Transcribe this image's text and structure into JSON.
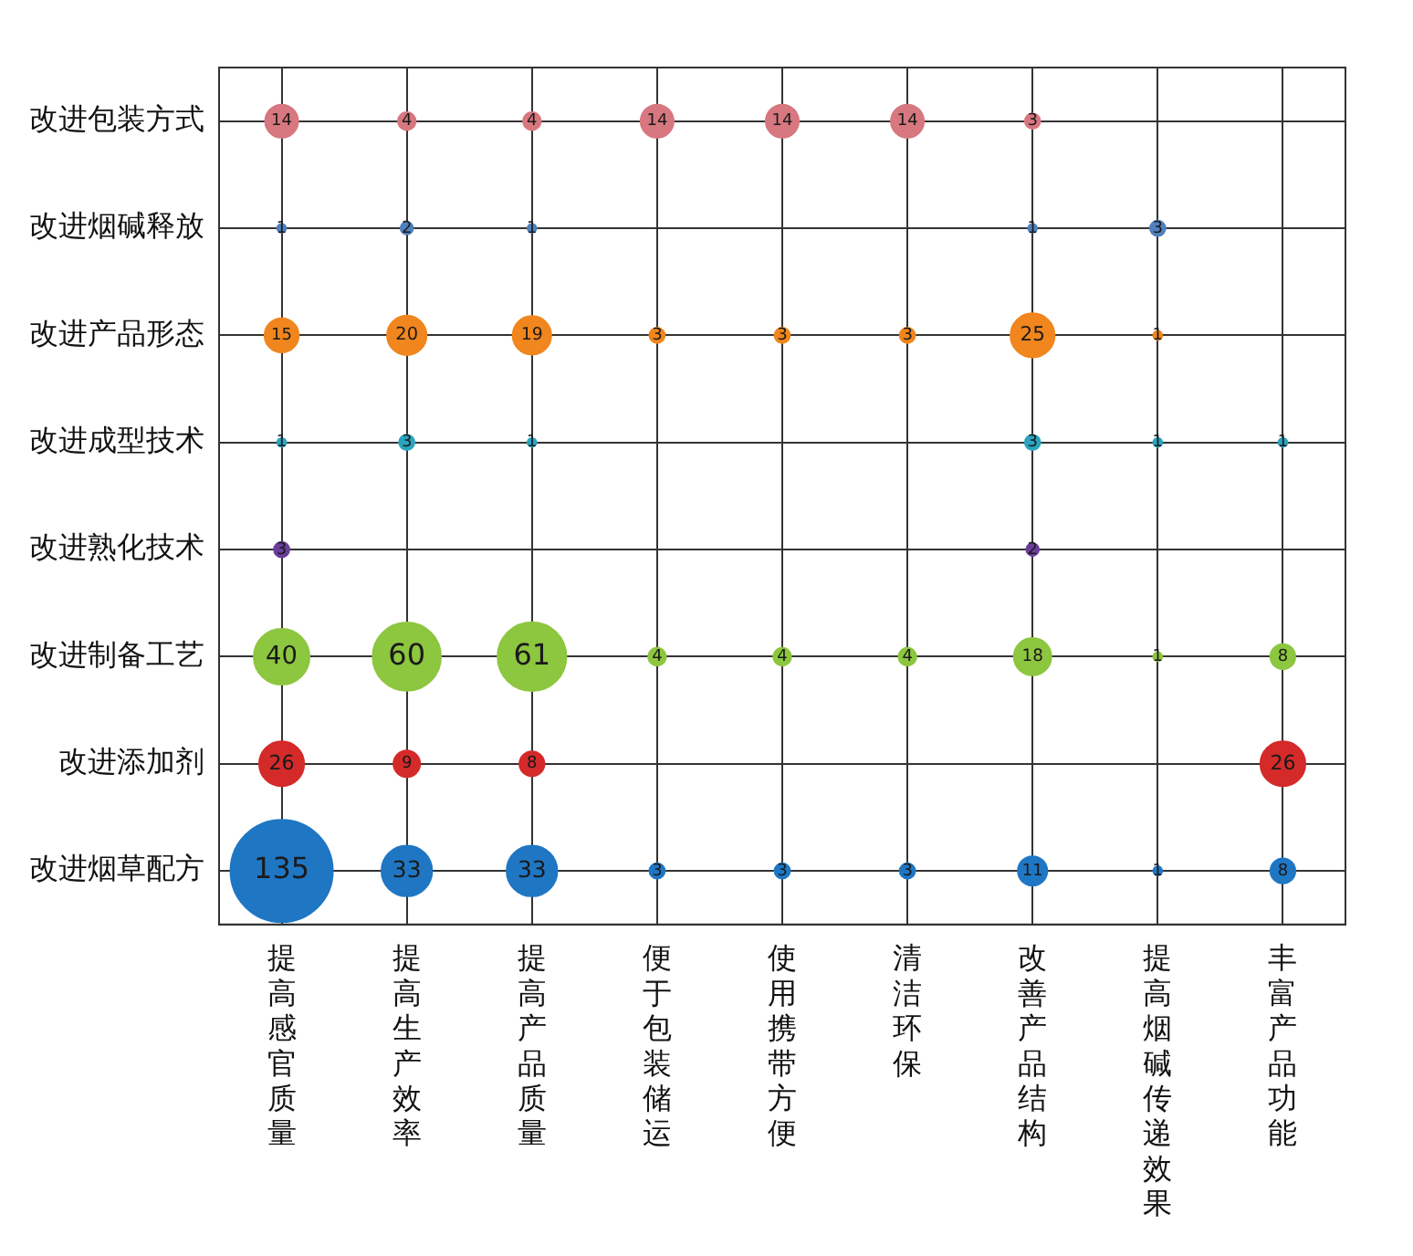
{
  "chart_data": {
    "type": "heatmap",
    "categories": [
      "提高感官质量",
      "提高生产效率",
      "提高产品质量",
      "便于包装储运",
      "使用携带方便",
      "清洁环保",
      "改善产品结构",
      "提高烟碱传递效果",
      "丰富产品功能"
    ],
    "y_categories": [
      "改进包装方式",
      "改进烟碱释放",
      "改进产品形态",
      "改进成型技术",
      "改进熟化技术",
      "改进制备工艺",
      "改进添加剂",
      "改进烟草配方"
    ],
    "cells": [
      [
        14,
        4,
        4,
        14,
        14,
        14,
        3,
        null,
        null
      ],
      [
        1,
        2,
        1,
        null,
        null,
        null,
        1,
        3,
        null
      ],
      [
        15,
        20,
        19,
        3,
        3,
        3,
        25,
        1,
        null
      ],
      [
        1,
        3,
        1,
        null,
        null,
        null,
        3,
        1,
        1
      ],
      [
        3,
        null,
        null,
        null,
        null,
        null,
        2,
        null,
        null
      ],
      [
        40,
        60,
        61,
        4,
        4,
        4,
        18,
        1,
        8
      ],
      [
        26,
        9,
        8,
        null,
        null,
        null,
        null,
        null,
        26
      ],
      [
        135,
        33,
        33,
        3,
        3,
        3,
        11,
        1,
        8
      ]
    ],
    "colors": [
      "#d7777f",
      "#4f81bd",
      "#f0861d",
      "#2aa4bf",
      "#6a3d9a",
      "#8dc63f",
      "#d42a2a",
      "#1f77c4"
    ],
    "data_labels": true,
    "grid": true,
    "legend": false
  }
}
